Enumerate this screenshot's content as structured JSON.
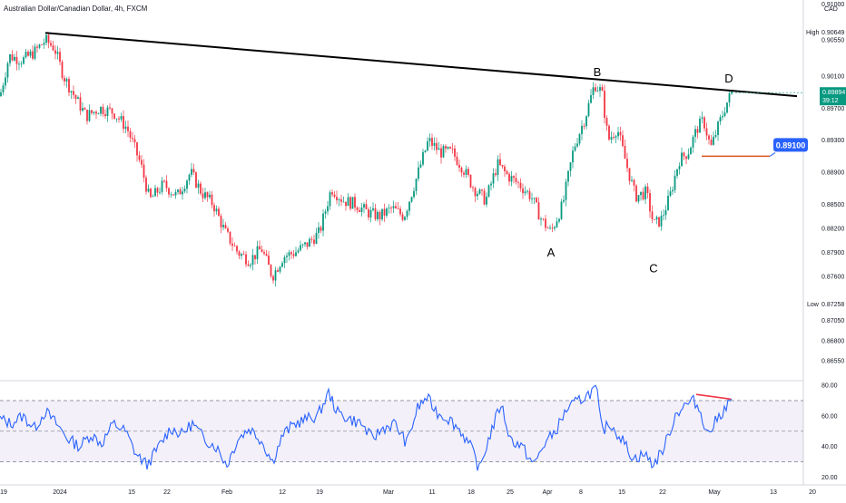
{
  "header": {
    "title": "Australian Dollar/Canadian Dollar, 4h, FXCM",
    "currency": "CAD"
  },
  "chart_data": [
    {
      "type": "candlestick",
      "title": "Australian Dollar/Canadian Dollar, 4h, FXCM",
      "ylabel": "CAD",
      "ylim": [
        0.863,
        0.9105
      ],
      "y_ticks": [
        "0.91000",
        "0.90550",
        "0.90100",
        "0.89700",
        "0.89300",
        "0.88900",
        "0.88500",
        "0.88200",
        "0.87900",
        "0.87600",
        "0.87050",
        "0.86800",
        "0.86550"
      ],
      "x_ticks": [
        "19",
        "2024",
        "15",
        "22",
        "Feb",
        "12",
        "19",
        "Mar",
        "11",
        "18",
        "25",
        "Apr",
        "8",
        "15",
        "22",
        "May",
        "13",
        "20"
      ],
      "high": {
        "label": "High",
        "value": "0.90649"
      },
      "low": {
        "label": "Low",
        "value": "0.87258"
      },
      "current_price": {
        "value": "0.89894",
        "countdown": "39:12"
      },
      "level_marker": {
        "value": "0.89100"
      },
      "pattern_labels": [
        "A",
        "B",
        "C",
        "D"
      ],
      "price_path": [
        {
          "x": 0,
          "y": 0.8985
        },
        {
          "x": 10,
          "y": 0.9035
        },
        {
          "x": 25,
          "y": 0.903
        },
        {
          "x": 38,
          "y": 0.904
        },
        {
          "x": 50,
          "y": 0.9055
        },
        {
          "x": 60,
          "y": 0.9045
        },
        {
          "x": 70,
          "y": 0.901
        },
        {
          "x": 82,
          "y": 0.8985
        },
        {
          "x": 95,
          "y": 0.896
        },
        {
          "x": 110,
          "y": 0.897
        },
        {
          "x": 125,
          "y": 0.8965
        },
        {
          "x": 140,
          "y": 0.8945
        },
        {
          "x": 155,
          "y": 0.89
        },
        {
          "x": 165,
          "y": 0.8855
        },
        {
          "x": 180,
          "y": 0.8875
        },
        {
          "x": 195,
          "y": 0.886
        },
        {
          "x": 210,
          "y": 0.889
        },
        {
          "x": 222,
          "y": 0.8865
        },
        {
          "x": 235,
          "y": 0.885
        },
        {
          "x": 248,
          "y": 0.8815
        },
        {
          "x": 262,
          "y": 0.879
        },
        {
          "x": 275,
          "y": 0.878
        },
        {
          "x": 288,
          "y": 0.8795
        },
        {
          "x": 300,
          "y": 0.876
        },
        {
          "x": 312,
          "y": 0.8785
        },
        {
          "x": 325,
          "y": 0.879
        },
        {
          "x": 338,
          "y": 0.88
        },
        {
          "x": 352,
          "y": 0.8815
        },
        {
          "x": 365,
          "y": 0.887
        },
        {
          "x": 378,
          "y": 0.8855
        },
        {
          "x": 392,
          "y": 0.885
        },
        {
          "x": 405,
          "y": 0.884
        },
        {
          "x": 418,
          "y": 0.8835
        },
        {
          "x": 432,
          "y": 0.8845
        },
        {
          "x": 445,
          "y": 0.8835
        },
        {
          "x": 458,
          "y": 0.888
        },
        {
          "x": 472,
          "y": 0.893
        },
        {
          "x": 485,
          "y": 0.8915
        },
        {
          "x": 498,
          "y": 0.8915
        },
        {
          "x": 510,
          "y": 0.8895
        },
        {
          "x": 522,
          "y": 0.887
        },
        {
          "x": 535,
          "y": 0.8855
        },
        {
          "x": 548,
          "y": 0.89
        },
        {
          "x": 560,
          "y": 0.8885
        },
        {
          "x": 572,
          "y": 0.8875
        },
        {
          "x": 585,
          "y": 0.886
        },
        {
          "x": 597,
          "y": 0.883
        },
        {
          "x": 607,
          "y": 0.8815
        },
        {
          "x": 620,
          "y": 0.885
        },
        {
          "x": 632,
          "y": 0.892
        },
        {
          "x": 645,
          "y": 0.896
        },
        {
          "x": 655,
          "y": 0.9
        },
        {
          "x": 663,
          "y": 0.899
        },
        {
          "x": 670,
          "y": 0.893
        },
        {
          "x": 680,
          "y": 0.8945
        },
        {
          "x": 690,
          "y": 0.89
        },
        {
          "x": 700,
          "y": 0.886
        },
        {
          "x": 712,
          "y": 0.8865
        },
        {
          "x": 720,
          "y": 0.8825
        },
        {
          "x": 728,
          "y": 0.883
        },
        {
          "x": 738,
          "y": 0.886
        },
        {
          "x": 748,
          "y": 0.8905
        },
        {
          "x": 758,
          "y": 0.8915
        },
        {
          "x": 768,
          "y": 0.8945
        },
        {
          "x": 775,
          "y": 0.8955
        },
        {
          "x": 783,
          "y": 0.892
        },
        {
          "x": 792,
          "y": 0.895
        },
        {
          "x": 800,
          "y": 0.8975
        },
        {
          "x": 806,
          "y": 0.8989
        }
      ],
      "trendline": {
        "from": {
          "x": 50,
          "y": 0.9064
        },
        "to": {
          "x": 878,
          "y": 0.8985
        }
      },
      "horizontal_marker": {
        "from_x": 773,
        "to_x": 848,
        "y": 0.891
      }
    },
    {
      "type": "line",
      "title": "",
      "ylim": [
        15,
        83
      ],
      "y_ticks": [
        "80.00",
        "60.00",
        "40.00",
        "20.00"
      ],
      "levels": [
        70,
        50,
        30
      ],
      "series": [
        {
          "values": [
            {
              "x": 0,
              "y": 58
            },
            {
              "x": 12,
              "y": 55
            },
            {
              "x": 25,
              "y": 60
            },
            {
              "x": 38,
              "y": 52
            },
            {
              "x": 50,
              "y": 63
            },
            {
              "x": 62,
              "y": 55
            },
            {
              "x": 75,
              "y": 45
            },
            {
              "x": 88,
              "y": 40
            },
            {
              "x": 100,
              "y": 48
            },
            {
              "x": 112,
              "y": 42
            },
            {
              "x": 125,
              "y": 55
            },
            {
              "x": 138,
              "y": 50
            },
            {
              "x": 150,
              "y": 35
            },
            {
              "x": 162,
              "y": 28
            },
            {
              "x": 175,
              "y": 40
            },
            {
              "x": 188,
              "y": 52
            },
            {
              "x": 200,
              "y": 48
            },
            {
              "x": 212,
              "y": 55
            },
            {
              "x": 225,
              "y": 45
            },
            {
              "x": 238,
              "y": 40
            },
            {
              "x": 250,
              "y": 28
            },
            {
              "x": 262,
              "y": 45
            },
            {
              "x": 275,
              "y": 52
            },
            {
              "x": 288,
              "y": 44
            },
            {
              "x": 300,
              "y": 30
            },
            {
              "x": 312,
              "y": 48
            },
            {
              "x": 325,
              "y": 55
            },
            {
              "x": 338,
              "y": 58
            },
            {
              "x": 350,
              "y": 60
            },
            {
              "x": 362,
              "y": 75
            },
            {
              "x": 372,
              "y": 62
            },
            {
              "x": 385,
              "y": 58
            },
            {
              "x": 398,
              "y": 55
            },
            {
              "x": 410,
              "y": 45
            },
            {
              "x": 422,
              "y": 52
            },
            {
              "x": 435,
              "y": 55
            },
            {
              "x": 448,
              "y": 42
            },
            {
              "x": 460,
              "y": 65
            },
            {
              "x": 470,
              "y": 72
            },
            {
              "x": 482,
              "y": 62
            },
            {
              "x": 495,
              "y": 58
            },
            {
              "x": 508,
              "y": 50
            },
            {
              "x": 520,
              "y": 38
            },
            {
              "x": 528,
              "y": 25
            },
            {
              "x": 540,
              "y": 48
            },
            {
              "x": 552,
              "y": 68
            },
            {
              "x": 562,
              "y": 45
            },
            {
              "x": 575,
              "y": 40
            },
            {
              "x": 588,
              "y": 28
            },
            {
              "x": 600,
              "y": 42
            },
            {
              "x": 612,
              "y": 50
            },
            {
              "x": 625,
              "y": 65
            },
            {
              "x": 638,
              "y": 70
            },
            {
              "x": 650,
              "y": 75
            },
            {
              "x": 657,
              "y": 78
            },
            {
              "x": 663,
              "y": 50
            },
            {
              "x": 672,
              "y": 55
            },
            {
              "x": 685,
              "y": 45
            },
            {
              "x": 698,
              "y": 32
            },
            {
              "x": 710,
              "y": 35
            },
            {
              "x": 720,
              "y": 28
            },
            {
              "x": 732,
              "y": 40
            },
            {
              "x": 745,
              "y": 62
            },
            {
              "x": 755,
              "y": 67
            },
            {
              "x": 765,
              "y": 70
            },
            {
              "x": 772,
              "y": 62
            },
            {
              "x": 780,
              "y": 48
            },
            {
              "x": 790,
              "y": 58
            },
            {
              "x": 800,
              "y": 66
            },
            {
              "x": 806,
              "y": 70
            }
          ]
        }
      ],
      "divergence_line": {
        "from": {
          "x": 767,
          "y": 74
        },
        "to": {
          "x": 805,
          "y": 71
        }
      }
    }
  ]
}
